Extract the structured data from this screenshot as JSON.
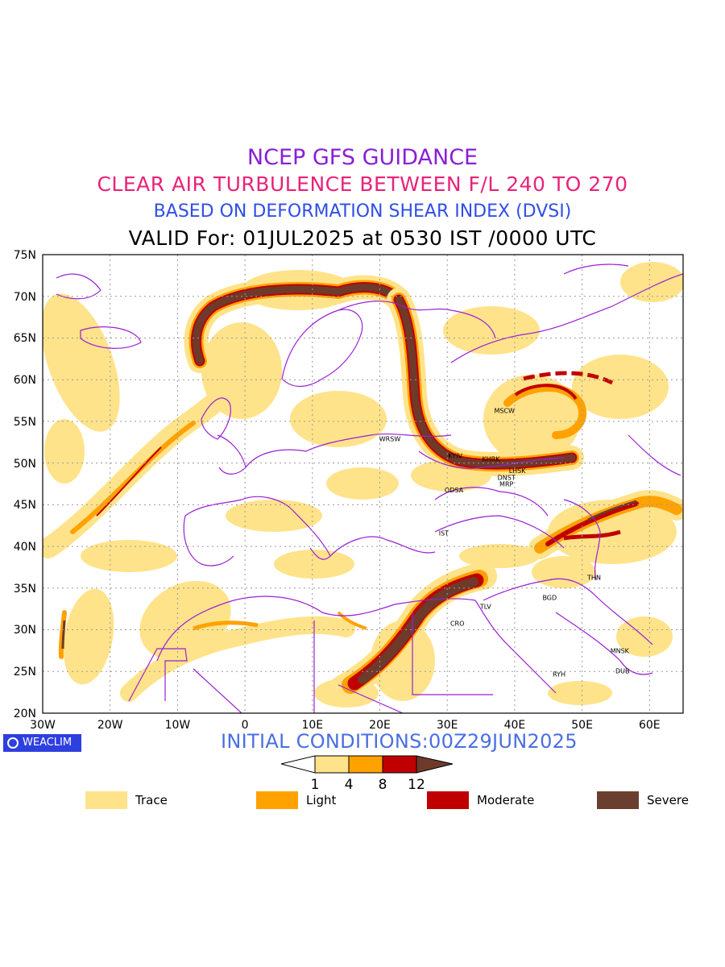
{
  "header": {
    "title_line1": "NCEP GFS GUIDANCE",
    "title_line2": "CLEAR AIR TURBULENCE BETWEEN F/L 240 TO 270",
    "title_line3": "BASED ON DEFORMATION SHEAR INDEX (DVSI)",
    "valid_line": "VALID For: 01JUL2025 at 0530 IST /0000 UTC"
  },
  "map": {
    "lon_range": [
      -30,
      65
    ],
    "lat_range": [
      20,
      75
    ],
    "y_axis_labels": [
      "75N",
      "70N",
      "65N",
      "60N",
      "55N",
      "50N",
      "45N",
      "40N",
      "35N",
      "30N",
      "25N",
      "20N"
    ],
    "x_axis_labels": [
      "30W",
      "20W",
      "10W",
      "0",
      "10E",
      "20E",
      "30E",
      "40E",
      "50E",
      "60E"
    ],
    "cities": [
      {
        "name": "MSCW",
        "lon": 38.5,
        "lat": 56.0
      },
      {
        "name": "WRSW",
        "lon": 21.5,
        "lat": 52.6
      },
      {
        "name": "KYIV",
        "lon": 31.2,
        "lat": 50.6
      },
      {
        "name": "KHRK",
        "lon": 36.5,
        "lat": 50.2
      },
      {
        "name": "LHSK",
        "lon": 40.4,
        "lat": 48.8
      },
      {
        "name": "DNST",
        "lon": 38.8,
        "lat": 48.0
      },
      {
        "name": "MRP",
        "lon": 38.8,
        "lat": 47.2
      },
      {
        "name": "ODSA",
        "lon": 31.0,
        "lat": 46.5
      },
      {
        "name": "IST",
        "lon": 29.5,
        "lat": 41.3
      },
      {
        "name": "THN",
        "lon": 51.8,
        "lat": 36.0
      },
      {
        "name": "BGD",
        "lon": 45.2,
        "lat": 33.6
      },
      {
        "name": "CRO",
        "lon": 31.5,
        "lat": 30.5
      },
      {
        "name": "TLV",
        "lon": 35.7,
        "lat": 32.5
      },
      {
        "name": "MNSK",
        "lon": 55.6,
        "lat": 27.2
      },
      {
        "name": "DUB",
        "lon": 56.0,
        "lat": 24.8
      },
      {
        "name": "RYH",
        "lon": 46.6,
        "lat": 24.4
      }
    ]
  },
  "footer": {
    "brand": "WEACLIM",
    "initial_conditions": "INITIAL CONDITIONS:00Z29JUN2025"
  },
  "colorbar": {
    "ticks": [
      "1",
      "4",
      "8",
      "12"
    ],
    "colors": [
      "#ffffff",
      "#ffe38a",
      "#ffa200",
      "#c00000",
      "#6e3a2a"
    ]
  },
  "legend": [
    {
      "label": "Trace",
      "color": "#ffe38a"
    },
    {
      "label": "Light",
      "color": "#ffa200"
    },
    {
      "label": "Moderate",
      "color": "#c00000"
    },
    {
      "label": "Severe",
      "color": "#6b3f2f"
    }
  ]
}
